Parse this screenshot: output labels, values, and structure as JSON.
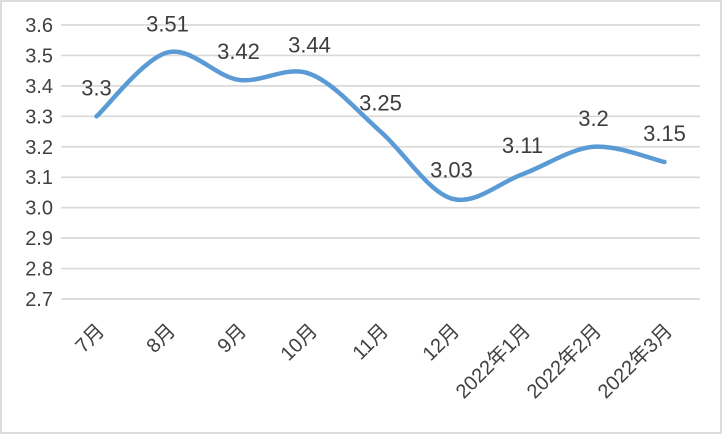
{
  "chart_data": {
    "type": "line",
    "title": "",
    "categories": [
      "7月",
      "8月",
      "9月",
      "10月",
      "11月",
      "12月",
      "2022年1月",
      "2022年2月",
      "2022年3月"
    ],
    "values": [
      3.3,
      3.51,
      3.42,
      3.44,
      3.25,
      3.03,
      3.11,
      3.2,
      3.15
    ],
    "data_labels": [
      "3.3",
      "3.51",
      "3.42",
      "3.44",
      "3.25",
      "3.03",
      "3.11",
      "3.2",
      "3.15"
    ],
    "series_name": "",
    "xlabel": "",
    "ylabel": "",
    "ylim": [
      2.7,
      3.6
    ],
    "y_step": 0.1,
    "y_tick_labels": [
      "3.6",
      "3.5",
      "3.4",
      "3.3",
      "3.2",
      "3.1",
      "3.0",
      "2.9",
      "2.8",
      "2.7"
    ],
    "grid": true,
    "legend_position": "none",
    "smooth": true,
    "line_color": "#5B9BD5",
    "gridline_color": "#D9D9D9",
    "axis_text_color": "#404040",
    "data_label_color": "#3D3D3D",
    "frame_border_color": "#DCDCDC",
    "background_color": "#FFFFFF"
  }
}
